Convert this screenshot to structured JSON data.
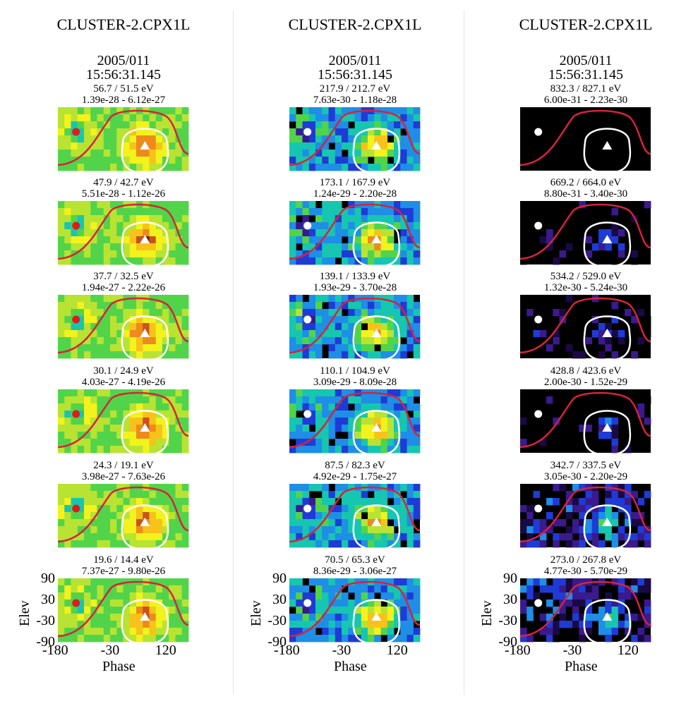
{
  "figure": {
    "columns": [
      {
        "title": "CLUSTER-2.CPX1L",
        "date": "2005/011",
        "time": "15:56:31.145",
        "marker_color": "#e01b1b",
        "panels": [
          {
            "energy": "56.7 / 51.5 eV",
            "range": "1.39e-28 - 6.12e-27",
            "intensity": "high"
          },
          {
            "energy": "47.9 / 42.7 eV",
            "range": "5.51e-28 - 1.12e-26",
            "intensity": "high"
          },
          {
            "energy": "37.7 / 32.5 eV",
            "range": "1.94e-27 - 2.22e-26",
            "intensity": "high"
          },
          {
            "energy": "30.1 / 24.9 eV",
            "range": "4.03e-27 - 4.19e-26",
            "intensity": "high"
          },
          {
            "energy": "24.3 / 19.1 eV",
            "range": "3.98e-27 - 7.63e-26",
            "intensity": "high"
          },
          {
            "energy": "19.6 / 14.4 eV",
            "range": "7.37e-27 - 9.80e-26",
            "intensity": "high"
          }
        ]
      },
      {
        "title": "CLUSTER-2.CPX1L",
        "date": "2005/011",
        "time": "15:56:31.145",
        "marker_color": "#ffffff",
        "panels": [
          {
            "energy": "217.9 / 212.7 eV",
            "range": "7.63e-30 - 1.18e-28",
            "intensity": "mid"
          },
          {
            "energy": "173.1 / 167.9 eV",
            "range": "1.24e-29 - 2.20e-28",
            "intensity": "mid"
          },
          {
            "energy": "139.1 / 133.9 eV",
            "range": "1.93e-29 - 3.70e-28",
            "intensity": "mid"
          },
          {
            "energy": "110.1 / 104.9 eV",
            "range": "3.09e-29 - 8.09e-28",
            "intensity": "mid"
          },
          {
            "energy": "87.5 / 82.3 eV",
            "range": "4.92e-29 - 1.75e-27",
            "intensity": "mid"
          },
          {
            "energy": "70.5 / 65.3 eV",
            "range": "8.36e-29 - 3.06e-27",
            "intensity": "mid"
          }
        ]
      },
      {
        "title": "CLUSTER-2.CPX1L",
        "date": "2005/011",
        "time": "15:56:31.145",
        "marker_color": "#ffffff",
        "panels": [
          {
            "energy": "832.3 / 827.1 eV",
            "range": "6.00e-31 - 2.23e-30",
            "intensity": "empty"
          },
          {
            "energy": "669.2 / 664.0 eV",
            "range": "8.80e-31 - 3.40e-30",
            "intensity": "sparse"
          },
          {
            "energy": "534.2 / 529.0 eV",
            "range": "1.32e-30 - 5.24e-30",
            "intensity": "sparse"
          },
          {
            "energy": "428.8 / 423.6 eV",
            "range": "2.00e-30 - 1.52e-29",
            "intensity": "sparse"
          },
          {
            "energy": "342.7 / 337.5 eV",
            "range": "3.05e-30 - 2.20e-29",
            "intensity": "low"
          },
          {
            "energy": "273.0 / 267.8 eV",
            "range": "4.77e-30 - 5.70e-29",
            "intensity": "low"
          }
        ]
      }
    ]
  },
  "chart_data": {
    "type": "heatmap",
    "title": "CLUSTER-2.CPX1L",
    "xlabel": "Phase",
    "ylabel": "Elev",
    "xticks": [
      "-180",
      "-30",
      "120"
    ],
    "yticks": [
      "90",
      "30",
      "-30",
      "-90"
    ],
    "xlim": [
      -180,
      180
    ],
    "ylim": [
      -90,
      90
    ],
    "grid": false,
    "overlays": {
      "circle_marker_phase": -130,
      "circle_marker_elev": 20,
      "triangle_marker_phase": 60,
      "triangle_marker_elev": -20,
      "contour_color": "#ffffff",
      "curve_color": "#d6233b"
    }
  }
}
